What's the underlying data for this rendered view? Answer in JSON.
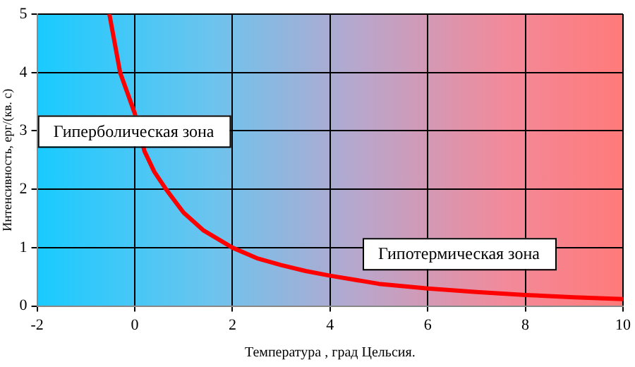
{
  "chart_data": {
    "type": "line",
    "xlabel": "Температура , град Цельсия.",
    "ylabel": "Интенсивность, ерг/(кв. с)",
    "x": [
      -0.52,
      -0.3,
      0,
      0.2,
      0.4,
      0.64,
      1,
      1.4,
      2,
      2.5,
      3,
      3.5,
      4,
      5,
      6,
      7,
      8,
      9,
      10
    ],
    "series": [
      {
        "color": "#ff0000",
        "values": [
          5,
          4,
          3.3,
          2.65,
          2.3,
          2,
          1.6,
          1.3,
          1,
          0.82,
          0.7,
          0.6,
          0.52,
          0.38,
          0.3,
          0.24,
          0.19,
          0.15,
          0.12
        ]
      }
    ],
    "xlim": [
      -2,
      10
    ],
    "xticks": [
      -2,
      0,
      2,
      4,
      6,
      8,
      10
    ],
    "ylim": [
      0,
      5
    ],
    "yticks": [
      0,
      1,
      2,
      3,
      4,
      5
    ],
    "grid": true,
    "legend": false,
    "marker": "none",
    "line_style": "solid",
    "annotations": [
      "Гиперболическая зона",
      "Гипотермическая зона"
    ]
  }
}
